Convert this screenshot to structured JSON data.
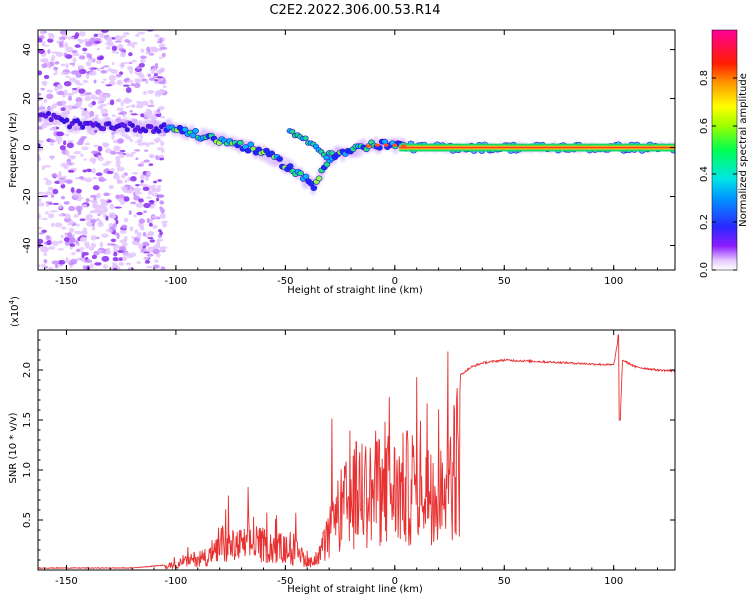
{
  "title": "C2E2.2022.306.00.53.R14",
  "colors": {
    "snr_line": "#e83030",
    "background": "#ffffff",
    "axis": "#000000"
  },
  "chart_data": [
    {
      "type": "heatmap",
      "title": "C2E2.2022.306.00.53.R14",
      "xlabel": "Height of straight line (km)",
      "ylabel": "Frequency (Hz)",
      "xlim": [
        -163,
        128
      ],
      "ylim": [
        -50,
        48
      ],
      "xticks": [
        -150,
        -100,
        -50,
        0,
        50,
        100
      ],
      "yticks": [
        -40,
        -20,
        0,
        20,
        40
      ],
      "colorbar": {
        "label": "Normalized spectral amplitude",
        "range": [
          0,
          1
        ],
        "ticks": [
          "0.0",
          "0.2",
          "0.4",
          "0.6",
          "0.8"
        ],
        "colormap": "rainbow (white-purple-blue-cyan-green-yellow-orange-red-magenta)"
      },
      "ridge": [
        {
          "x": -162,
          "y": 14
        },
        {
          "x": -150,
          "y": 10
        },
        {
          "x": -140,
          "y": 9
        },
        {
          "x": -130,
          "y": 9
        },
        {
          "x": -115,
          "y": 8
        },
        {
          "x": -105,
          "y": 8
        },
        {
          "x": -100,
          "y": 8
        },
        {
          "x": -90,
          "y": 5
        },
        {
          "x": -80,
          "y": 3
        },
        {
          "x": -70,
          "y": 1
        },
        {
          "x": -60,
          "y": -2
        },
        {
          "x": -50,
          "y": -7
        },
        {
          "x": -42,
          "y": -12
        },
        {
          "x": -37,
          "y": -16
        },
        {
          "x": -30,
          "y": -4
        },
        {
          "x": -20,
          "y": -1
        },
        {
          "x": -10,
          "y": 1
        },
        {
          "x": 0,
          "y": 1
        },
        {
          "x": 10,
          "y": 0
        },
        {
          "x": 50,
          "y": 0
        },
        {
          "x": 128,
          "y": 0
        }
      ],
      "branch": [
        {
          "x": -48,
          "y": 6
        },
        {
          "x": -42,
          "y": 4
        },
        {
          "x": -36,
          "y": 0
        },
        {
          "x": -32,
          "y": -4
        },
        {
          "x": -28,
          "y": -2
        }
      ]
    },
    {
      "type": "line",
      "xlabel": "Height of straight line (km)",
      "ylabel": "SNR (10 * v/v)",
      "y_multiplier": "(x10^4)",
      "xlim": [
        -163,
        128
      ],
      "ylim": [
        0,
        2.4
      ],
      "xticks": [
        -150,
        -100,
        -50,
        0,
        50,
        100
      ],
      "yticks": [
        "0.5",
        "1.0",
        "1.5",
        "2.0"
      ],
      "series": [
        {
          "points": [
            {
              "x": -163,
              "y": 0.02
            },
            {
              "x": -120,
              "y": 0.02
            },
            {
              "x": -105,
              "y": 0.05
            },
            {
              "x": -95,
              "y": 0.15
            },
            {
              "x": -85,
              "y": 0.25
            },
            {
              "x": -75,
              "y": 0.4
            },
            {
              "x": -65,
              "y": 0.45
            },
            {
              "x": -55,
              "y": 0.4
            },
            {
              "x": -45,
              "y": 0.3
            },
            {
              "x": -40,
              "y": 0.15
            },
            {
              "x": -35,
              "y": 0.2
            },
            {
              "x": -30,
              "y": 0.6
            },
            {
              "x": -25,
              "y": 1.0
            },
            {
              "x": -20,
              "y": 1.2
            },
            {
              "x": -15,
              "y": 1.4
            },
            {
              "x": -10,
              "y": 1.3
            },
            {
              "x": -5,
              "y": 1.45
            },
            {
              "x": 0,
              "y": 1.35
            },
            {
              "x": 5,
              "y": 1.4
            },
            {
              "x": 10,
              "y": 1.5
            },
            {
              "x": 15,
              "y": 1.6
            },
            {
              "x": 20,
              "y": 1.75
            },
            {
              "x": 25,
              "y": 1.85
            },
            {
              "x": 30,
              "y": 1.95
            },
            {
              "x": 35,
              "y": 2.03
            },
            {
              "x": 40,
              "y": 2.07
            },
            {
              "x": 50,
              "y": 2.1
            },
            {
              "x": 60,
              "y": 2.09
            },
            {
              "x": 70,
              "y": 2.08
            },
            {
              "x": 80,
              "y": 2.07
            },
            {
              "x": 90,
              "y": 2.06
            },
            {
              "x": 100,
              "y": 2.05
            },
            {
              "x": 102,
              "y": 2.3
            },
            {
              "x": 103,
              "y": 1.5
            },
            {
              "x": 104,
              "y": 2.1
            },
            {
              "x": 110,
              "y": 2.03
            },
            {
              "x": 120,
              "y": 2.0
            },
            {
              "x": 128,
              "y": 1.99
            }
          ]
        }
      ]
    }
  ]
}
